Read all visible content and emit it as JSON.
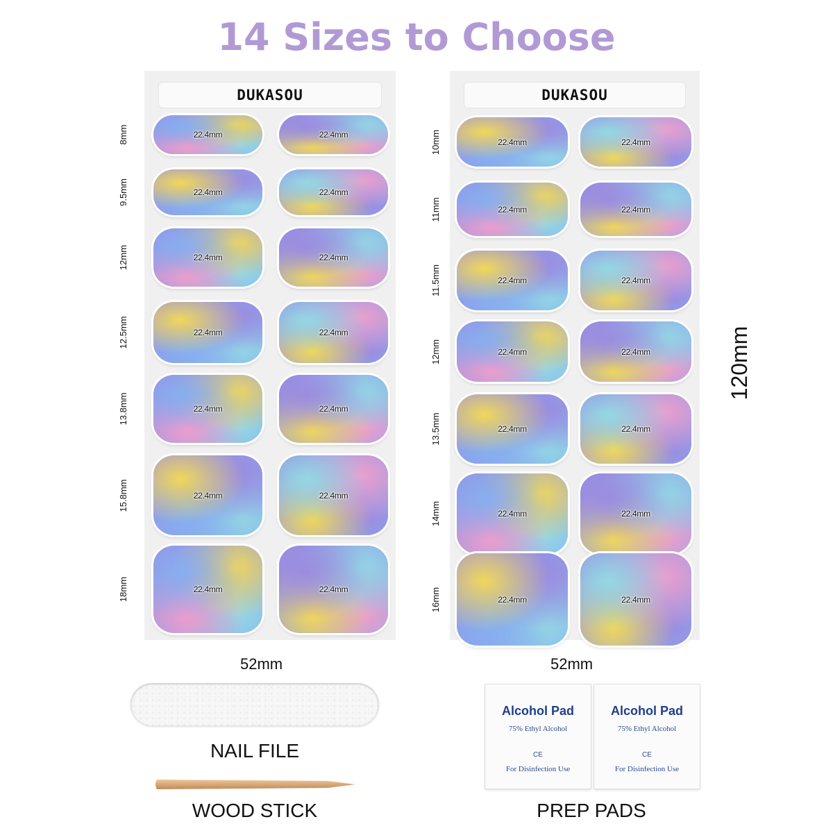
{
  "title": "14 Sizes to Choose",
  "colors": {
    "title": "#b19ad4",
    "purple": "#9b8ce0",
    "blue": "#86aef0",
    "yellow": "#f1d75a",
    "pink": "#ef9ccb",
    "cyan": "#93d8e4",
    "pad_text": "#1f3f8a"
  },
  "sheets": [
    {
      "brand": "DUKASOU",
      "width_label": "52mm",
      "rows": [
        {
          "size": "8mm",
          "nails": [
            "22.4mm",
            "22.4mm"
          ]
        },
        {
          "size": "9.5mm",
          "nails": [
            "22.4mm",
            "22.4mm"
          ]
        },
        {
          "size": "12mm",
          "nails": [
            "22.4mm",
            "22.4mm"
          ]
        },
        {
          "size": "12.5mm",
          "nails": [
            "22.4mm",
            "22.4mm"
          ]
        },
        {
          "size": "13.8mm",
          "nails": [
            "22.4mm",
            "22.4mm"
          ]
        },
        {
          "size": "15.8mm",
          "nails": [
            "22.4mm",
            "22.4mm"
          ]
        },
        {
          "size": "18mm",
          "nails": [
            "22.4mm",
            "22.4mm"
          ]
        }
      ]
    },
    {
      "brand": "DUKASOU",
      "width_label": "52mm",
      "rows": [
        {
          "size": "10mm",
          "nails": [
            "22.4mm",
            "22.4mm"
          ]
        },
        {
          "size": "11mm",
          "nails": [
            "22.4mm",
            "22.4mm"
          ]
        },
        {
          "size": "11.5mm",
          "nails": [
            "22.4mm",
            "22.4mm"
          ]
        },
        {
          "size": "12mm",
          "nails": [
            "22.4mm",
            "22.4mm"
          ]
        },
        {
          "size": "13.5mm",
          "nails": [
            "22.4mm",
            "22.4mm"
          ]
        },
        {
          "size": "14mm",
          "nails": [
            "22.4mm",
            "22.4mm"
          ]
        },
        {
          "size": "16mm",
          "nails": [
            "22.4mm",
            "22.4mm"
          ]
        }
      ]
    }
  ],
  "height_label": "120mm",
  "accessories": {
    "nail_file": "NAIL FILE",
    "wood_stick": "WOOD STICK",
    "prep_pads": "PREP PADS"
  },
  "pads": [
    {
      "title": "Alcohol  Pad",
      "subtitle": "75% Ethyl Alcohol",
      "mark": "CE",
      "footer": "For Disinfection Use"
    },
    {
      "title": "Alcohol  Pad",
      "subtitle": "75% Ethyl Alcohol",
      "mark": "CE",
      "footer": "For Disinfection Use"
    }
  ]
}
